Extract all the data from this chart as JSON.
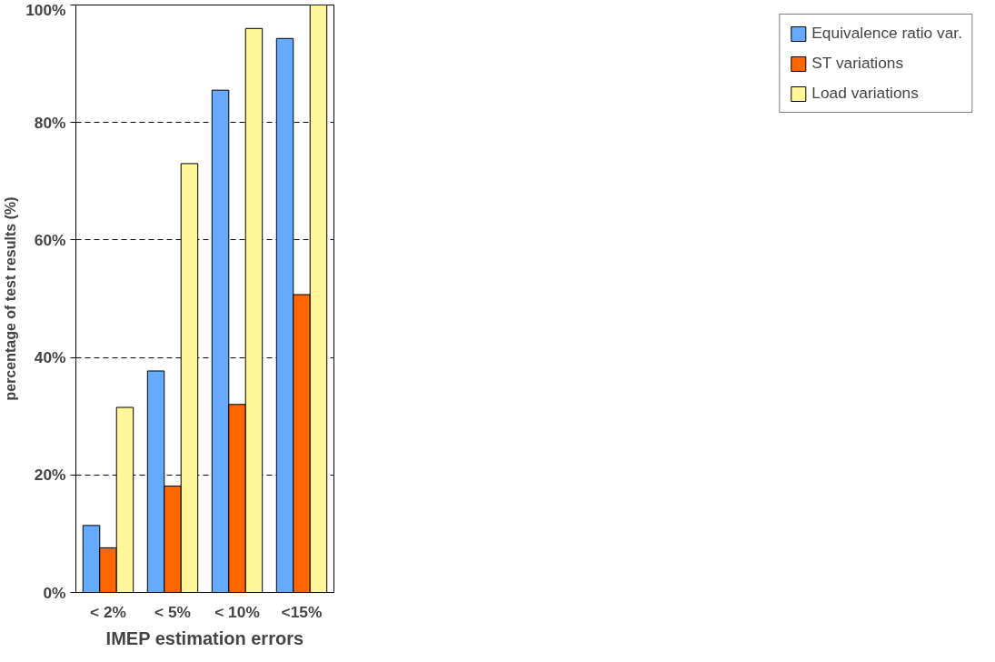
{
  "chart_data": {
    "type": "bar",
    "xlabel": "IMEP estimation errors",
    "ylabel": "percentage of test results (%)",
    "categories": [
      "< 2%",
      "< 5%",
      "< 10%",
      "<15%"
    ],
    "series": [
      {
        "name": "Equivalence ratio var.",
        "color": "#66aaff",
        "values": [
          11.4,
          37.7,
          85.5,
          94.3
        ]
      },
      {
        "name": "ST variations",
        "color": "#ff6600",
        "values": [
          7.6,
          18.1,
          32.0,
          50.7
        ]
      },
      {
        "name": "Load variations",
        "color": "#fff599",
        "values": [
          31.5,
          73.0,
          96.0,
          100
        ]
      }
    ],
    "ylim": [
      0,
      100
    ],
    "yticks": [
      {
        "value": 0,
        "label": "0%"
      },
      {
        "value": 20,
        "label": "20%"
      },
      {
        "value": 40,
        "label": "40%"
      },
      {
        "value": 60,
        "label": "60%"
      },
      {
        "value": 80,
        "label": "80%"
      },
      {
        "value": 100,
        "label": "100%"
      }
    ],
    "grid": "y",
    "line_style": "dashed",
    "legend": "right"
  }
}
